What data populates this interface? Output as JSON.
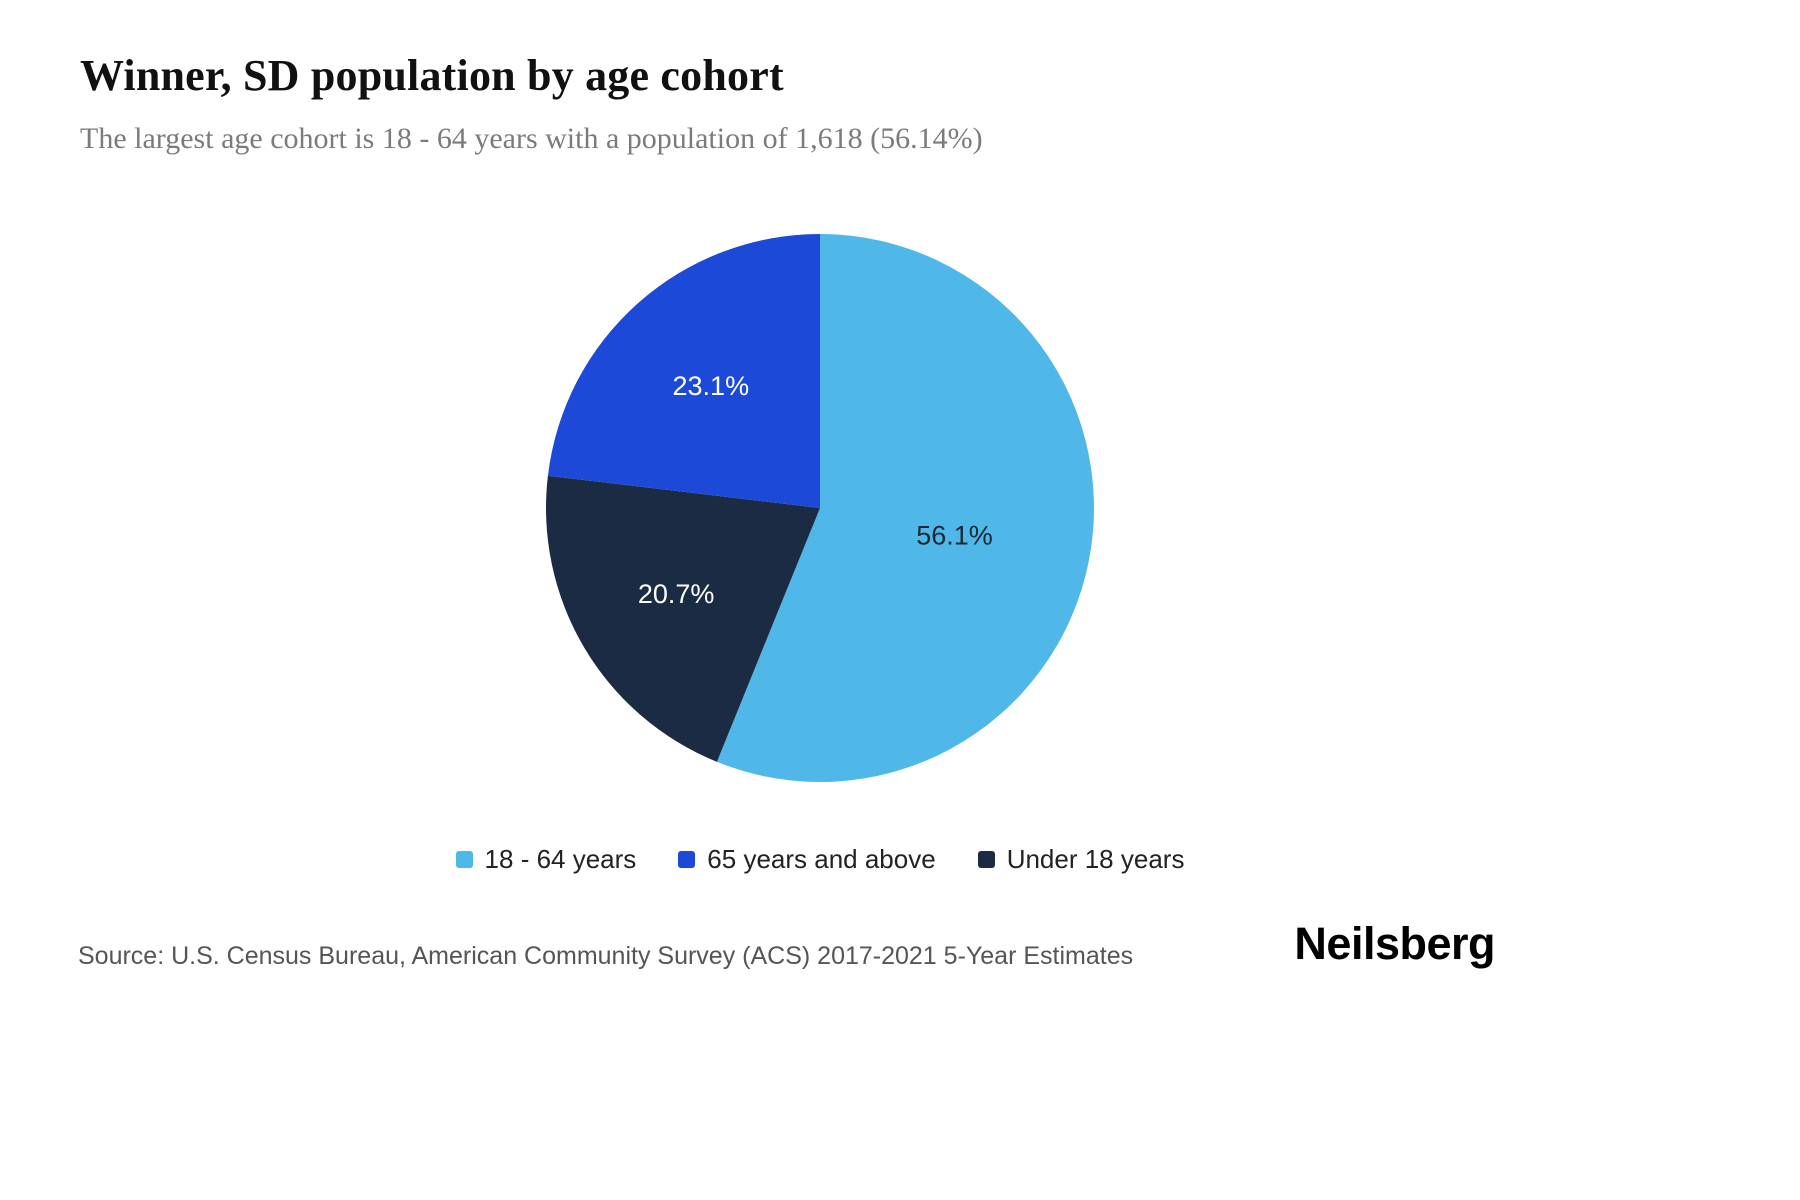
{
  "header": {
    "title": "Winner, SD population by age cohort",
    "subtitle": "The largest age cohort is 18 - 64 years with a population of 1,618 (56.14%)"
  },
  "chart_data": {
    "type": "pie",
    "title": "Winner, SD population by age cohort",
    "subtitle": "The largest age cohort is 18 - 64 years with a population of 1,618 (56.14%)",
    "largest_cohort": {
      "label": "18 - 64 years",
      "population": "1,618",
      "percent": "56.14%"
    },
    "slices": [
      {
        "label": "18 - 64 years",
        "value": 56.14,
        "display": "56.1%",
        "color": "#4FB8E8",
        "label_color": "#1a2733",
        "label_radius": 0.5
      },
      {
        "label": "65 years and above",
        "value": 23.12,
        "display": "23.1%",
        "color": "#1C49D8",
        "label_color": "#ffffff",
        "label_radius": 0.6
      },
      {
        "label": "Under 18 years",
        "value": 20.74,
        "display": "20.7%",
        "color": "#1C2B44",
        "label_color": "#ffffff",
        "label_radius": 0.61
      }
    ],
    "draw_order": [
      0,
      2,
      1
    ],
    "start_angle_deg": 0,
    "direction": "clockwise",
    "legend_position": "bottom"
  },
  "footer": {
    "source": "Source: U.S. Census Bureau, American Community Survey (ACS) 2017-2021 5-Year Estimates",
    "brand": "Neilsberg"
  }
}
